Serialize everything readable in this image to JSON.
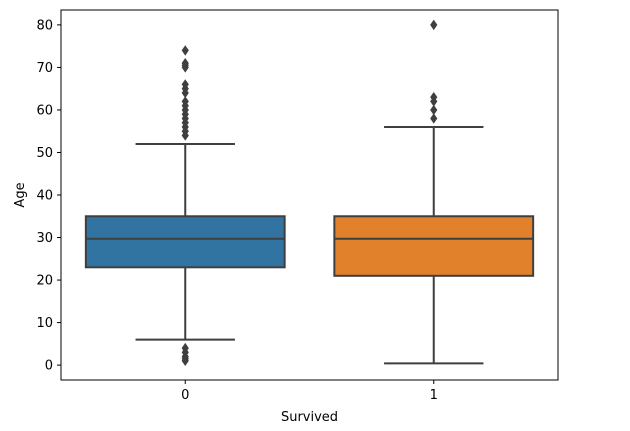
{
  "chart_data": {
    "type": "box",
    "title": "",
    "xlabel": "Survived",
    "ylabel": "Age",
    "categories": [
      "0",
      "1"
    ],
    "ylim": [
      -3.5,
      83.5
    ],
    "yticks": [
      0,
      10,
      20,
      30,
      40,
      50,
      60,
      70,
      80
    ],
    "ytick_labels": [
      "0",
      "10",
      "20",
      "30",
      "40",
      "50",
      "60",
      "70",
      "80"
    ],
    "grid": false,
    "legend": "none",
    "boxes": [
      {
        "category": "0",
        "color": "#3274a1",
        "whisker_low": 6,
        "q1": 23,
        "median": 29.7,
        "q3": 35,
        "whisker_high": 52,
        "outliers": [
          74,
          71,
          70.5,
          70,
          66,
          65,
          64,
          62,
          61,
          60,
          59,
          58,
          57,
          56,
          55,
          54,
          4,
          3,
          2,
          1.5,
          1
        ]
      },
      {
        "category": "1",
        "color": "#e1812c",
        "whisker_low": 0.42,
        "q1": 21,
        "median": 29.7,
        "q3": 35,
        "whisker_high": 56,
        "outliers": [
          80,
          63,
          62,
          60,
          58
        ]
      }
    ]
  }
}
